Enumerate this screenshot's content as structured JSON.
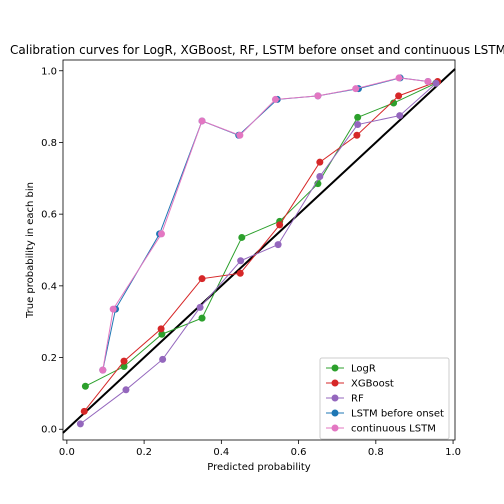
{
  "chart_data": {
    "type": "line",
    "title": "Calibration curves for LogR, XGBoost, RF, LSTM before onset and continuous LSTM",
    "xlabel": "Predicted probability",
    "ylabel": "True probability in each bin",
    "xlim": [
      -0.01,
      1.005
    ],
    "ylim": [
      -0.03,
      1.03
    ],
    "xticks": [
      "0.0",
      "0.2",
      "0.4",
      "0.6",
      "0.8",
      "1.0"
    ],
    "yticks": [
      "0.0",
      "0.2",
      "0.4",
      "0.6",
      "0.8",
      "1.0"
    ],
    "legend_position": "lower-right",
    "reference_line": {
      "x": [
        0,
        1
      ],
      "y": [
        0,
        1
      ],
      "color": "#000000"
    },
    "series": [
      {
        "name": "LogR",
        "color": "#2ca02c",
        "x": [
          0.048,
          0.148,
          0.246,
          0.35,
          0.453,
          0.551,
          0.65,
          0.753,
          0.846,
          0.955
        ],
        "y": [
          0.12,
          0.175,
          0.265,
          0.31,
          0.535,
          0.58,
          0.685,
          0.87,
          0.91,
          0.965
        ]
      },
      {
        "name": "XGBoost",
        "color": "#d62728",
        "x": [
          0.045,
          0.148,
          0.244,
          0.35,
          0.449,
          0.551,
          0.655,
          0.751,
          0.859,
          0.96
        ],
        "y": [
          0.05,
          0.19,
          0.28,
          0.42,
          0.435,
          0.57,
          0.745,
          0.82,
          0.93,
          0.97
        ]
      },
      {
        "name": "RF",
        "color": "#9467bd",
        "x": [
          0.035,
          0.153,
          0.248,
          0.345,
          0.45,
          0.547,
          0.655,
          0.753,
          0.862,
          0.956
        ],
        "y": [
          0.015,
          0.11,
          0.195,
          0.34,
          0.47,
          0.515,
          0.705,
          0.85,
          0.875,
          0.965
        ]
      },
      {
        "name": "LSTM before onset",
        "color": "#1f77b4",
        "x": [
          0.093,
          0.126,
          0.24,
          0.35,
          0.445,
          0.545,
          0.65,
          0.755,
          0.863,
          0.935
        ],
        "y": [
          0.165,
          0.335,
          0.545,
          0.86,
          0.82,
          0.92,
          0.93,
          0.95,
          0.98,
          0.97
        ]
      },
      {
        "name": "continuous LSTM",
        "color": "#e377c2",
        "x": [
          0.093,
          0.12,
          0.245,
          0.35,
          0.448,
          0.54,
          0.65,
          0.748,
          0.86,
          0.935
        ],
        "y": [
          0.165,
          0.335,
          0.545,
          0.86,
          0.82,
          0.92,
          0.93,
          0.95,
          0.98,
          0.97
        ]
      }
    ]
  }
}
